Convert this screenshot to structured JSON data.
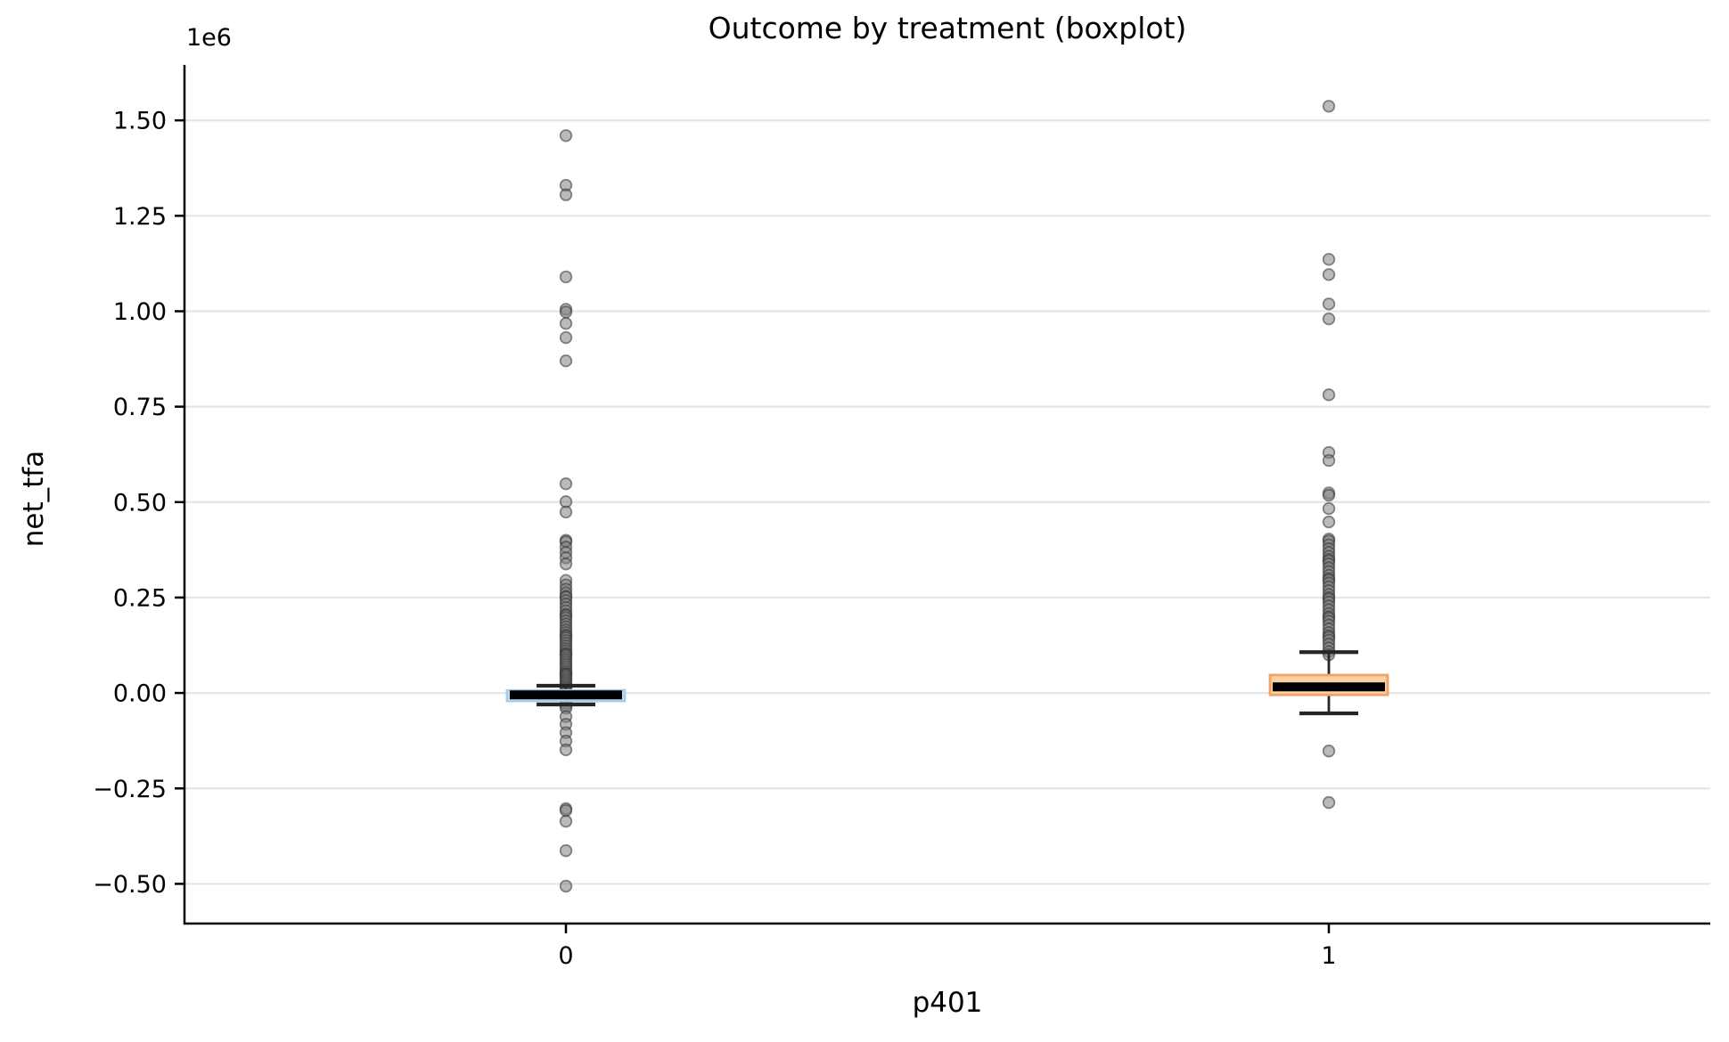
{
  "chart_data": {
    "type": "boxplot",
    "title": "Outcome by treatment (boxplot)",
    "xlabel": "p401",
    "ylabel": "net_tfa",
    "y_offset_label": "1e6",
    "grid": true,
    "grid_color": "#e5e5e5",
    "spine_color": "#000000",
    "ylim_1e6": [
      -0.604,
      1.645
    ],
    "xlim": [
      -0.5,
      1.5
    ],
    "y_ticks": [
      {
        "value": 1.5,
        "label": "1.50"
      },
      {
        "value": 1.25,
        "label": "1.25"
      },
      {
        "value": 1.0,
        "label": "1.00"
      },
      {
        "value": 0.75,
        "label": "0.75"
      },
      {
        "value": 0.5,
        "label": "0.50"
      },
      {
        "value": 0.25,
        "label": "0.25"
      },
      {
        "value": 0.0,
        "label": "0.00"
      },
      {
        "value": -0.25,
        "label": "−0.25"
      },
      {
        "value": -0.5,
        "label": "−0.50"
      }
    ],
    "point_style": {
      "radius_px": 6.3,
      "fill": "rgba(130,130,130,0.55)",
      "stroke": "rgba(50,50,50,0.55)",
      "stroke_width": 1.8
    },
    "whisker_color": "#262626",
    "median_color": "#000000",
    "groups": [
      {
        "label": "0",
        "x": 0,
        "box_fill": "#c9e0f0",
        "box_edge": "#a9cde5",
        "box_1e6": {
          "q1": -0.021,
          "median": -0.005,
          "q3": 0.007,
          "whisker_lo": -0.03,
          "whisker_hi": 0.019
        },
        "points_1e6": [
          1.46,
          1.33,
          1.305,
          1.09,
          1.005,
          0.998,
          0.968,
          0.931,
          0.87,
          0.548,
          0.501,
          0.474,
          0.4,
          0.396,
          0.382,
          0.368,
          0.354,
          0.338,
          0.295,
          0.283,
          0.272,
          0.262,
          0.253,
          0.251,
          0.242,
          0.233,
          0.224,
          0.215,
          0.206,
          0.203,
          0.197,
          0.189,
          0.181,
          0.173,
          0.165,
          0.158,
          0.151,
          0.149,
          0.144,
          0.137,
          0.13,
          0.123,
          0.116,
          0.11,
          0.104,
          0.101,
          0.098,
          0.092,
          0.086,
          0.08,
          0.074,
          0.068,
          0.062,
          0.056,
          0.051,
          0.049,
          0.046,
          0.041,
          0.036,
          0.031,
          0.026,
          0.021,
          0.016,
          0.012,
          0.008,
          0.004,
          0.001,
          -0.002,
          -0.006,
          -0.01,
          -0.014,
          -0.018,
          -0.023,
          -0.028,
          -0.034,
          -0.04,
          -0.062,
          -0.082,
          -0.104,
          -0.126,
          -0.149,
          -0.303,
          -0.308,
          -0.336,
          -0.413,
          -0.506
        ]
      },
      {
        "label": "1",
        "x": 1,
        "box_fill": "#fbd0a2",
        "box_edge": "#f0a268",
        "box_1e6": {
          "q1": -0.005,
          "median": 0.016,
          "q3": 0.047,
          "whisker_lo": -0.0535,
          "whisker_hi": 0.107
        },
        "points_1e6": [
          1.537,
          1.136,
          1.096,
          1.019,
          0.98,
          0.781,
          0.63,
          0.609,
          0.524,
          0.518,
          0.483,
          0.448,
          0.403,
          0.398,
          0.388,
          0.378,
          0.368,
          0.358,
          0.35,
          0.346,
          0.338,
          0.328,
          0.318,
          0.308,
          0.3,
          0.296,
          0.288,
          0.278,
          0.268,
          0.258,
          0.25,
          0.246,
          0.238,
          0.228,
          0.218,
          0.208,
          0.2,
          0.196,
          0.188,
          0.178,
          0.168,
          0.158,
          0.15,
          0.146,
          0.138,
          0.128,
          0.118,
          0.108,
          0.1,
          -0.152,
          -0.287
        ]
      }
    ]
  }
}
